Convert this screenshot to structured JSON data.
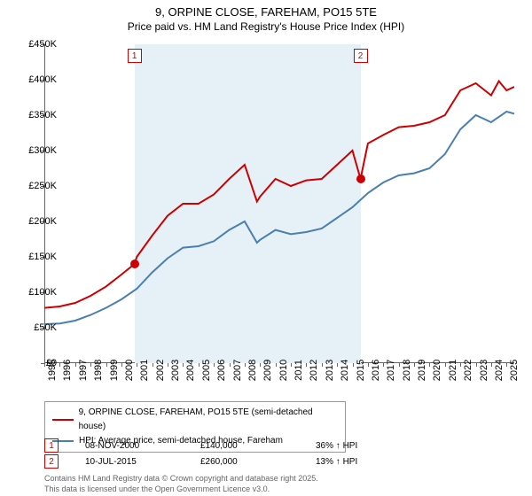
{
  "title": "9, ORPINE CLOSE, FAREHAM, PO15 5TE",
  "subtitle": "Price paid vs. HM Land Registry's House Price Index (HPI)",
  "chart": {
    "type": "line",
    "background_color": "#ffffff",
    "highlight_color": "#e6f0f7",
    "xlim": [
      1995,
      2025.5
    ],
    "ylim": [
      0,
      450000
    ],
    "ytick_step": 50000,
    "y_labels": [
      "£0",
      "£50K",
      "£100K",
      "£150K",
      "£200K",
      "£250K",
      "£300K",
      "£350K",
      "£400K",
      "£450K"
    ],
    "x_labels": [
      "1995",
      "1996",
      "1997",
      "1998",
      "1999",
      "2000",
      "2001",
      "2002",
      "2003",
      "2004",
      "2005",
      "2006",
      "2007",
      "2008",
      "2009",
      "2010",
      "2011",
      "2012",
      "2013",
      "2014",
      "2015",
      "2016",
      "2017",
      "2018",
      "2019",
      "2020",
      "2021",
      "2022",
      "2023",
      "2024",
      "2025"
    ],
    "highlight_band": {
      "start": 2000.85,
      "end": 2015.52
    },
    "series": [
      {
        "name": "9, ORPINE CLOSE, FAREHAM, PO15 5TE (semi-detached house)",
        "color": "#cc0000",
        "line_width": 2,
        "x": [
          1995,
          1996,
          1997,
          1998,
          1999,
          2000,
          2000.85,
          2001,
          2002,
          2003,
          2004,
          2005,
          2006,
          2007,
          2008,
          2008.8,
          2009,
          2010,
          2011,
          2012,
          2013,
          2014,
          2015,
          2015.52,
          2016,
          2017,
          2018,
          2019,
          2020,
          2021,
          2022,
          2023,
          2024,
          2024.5,
          2025,
          2025.5
        ],
        "y": [
          78000,
          80000,
          85000,
          95000,
          108000,
          125000,
          140000,
          150000,
          180000,
          208000,
          225000,
          225000,
          238000,
          260000,
          280000,
          228000,
          235000,
          260000,
          250000,
          258000,
          260000,
          280000,
          300000,
          260000,
          310000,
          322000,
          333000,
          335000,
          340000,
          350000,
          385000,
          395000,
          378000,
          398000,
          385000,
          390000
        ]
      },
      {
        "name": "HPI: Average price, semi-detached house, Fareham",
        "color": "#4a7fb0",
        "line_width": 2,
        "x": [
          1995,
          1996,
          1997,
          1998,
          1999,
          2000,
          2001,
          2002,
          2003,
          2004,
          2005,
          2006,
          2007,
          2008,
          2008.8,
          2009,
          2010,
          2011,
          2012,
          2013,
          2014,
          2015,
          2016,
          2017,
          2018,
          2019,
          2020,
          2021,
          2022,
          2023,
          2024,
          2025,
          2025.5
        ],
        "y": [
          55000,
          56000,
          60000,
          68000,
          78000,
          90000,
          105000,
          128000,
          148000,
          163000,
          165000,
          172000,
          188000,
          200000,
          170000,
          174000,
          188000,
          182000,
          185000,
          190000,
          205000,
          220000,
          240000,
          255000,
          265000,
          268000,
          275000,
          295000,
          330000,
          350000,
          340000,
          355000,
          352000
        ]
      }
    ],
    "sale_markers": [
      {
        "num": "1",
        "x": 2000.85,
        "y": 140000,
        "color": "#cc0000"
      },
      {
        "num": "2",
        "x": 2015.52,
        "y": 260000,
        "color": "#cc0000"
      }
    ],
    "marker_box_color": "#cc0000"
  },
  "legend": {
    "items": [
      {
        "label": "9, ORPINE CLOSE, FAREHAM, PO15 5TE (semi-detached house)",
        "color": "#cc0000"
      },
      {
        "label": "HPI: Average price, semi-detached house, Fareham",
        "color": "#4a7fb0"
      }
    ]
  },
  "sales": [
    {
      "num": "1",
      "date": "08-NOV-2000",
      "price": "£140,000",
      "pct": "36% ↑ HPI",
      "color": "#cc0000"
    },
    {
      "num": "2",
      "date": "10-JUL-2015",
      "price": "£260,000",
      "pct": "13% ↑ HPI",
      "color": "#cc0000"
    }
  ],
  "footer_line1": "Contains HM Land Registry data © Crown copyright and database right 2025.",
  "footer_line2": "This data is licensed under the Open Government Licence v3.0."
}
